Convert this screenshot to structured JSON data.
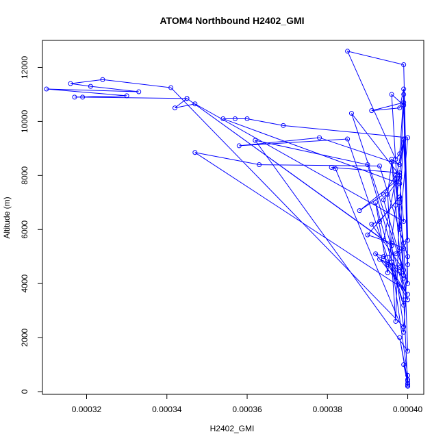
{
  "chart_data": {
    "type": "line",
    "title": "ATOM4 Northbound H2402_GMI",
    "xlabel": "H2402_GMI",
    "ylabel": "Altitude (m)",
    "xlim": [
      0.000309,
      0.000404
    ],
    "ylim": [
      -100,
      13000
    ],
    "x_ticks": [
      "0.00032",
      "0.00034",
      "0.00036",
      "0.00038",
      "0.00040"
    ],
    "x_tick_values": [
      0.00032,
      0.00034,
      0.00036,
      0.00038,
      0.0004
    ],
    "y_ticks": [
      "0",
      "2000",
      "4000",
      "6000",
      "8000",
      "10000",
      "12000"
    ],
    "y_tick_values": [
      0,
      2000,
      4000,
      6000,
      8000,
      10000,
      12000
    ],
    "grid": false,
    "series": [
      {
        "color": "#0000ff",
        "marker": "circle-open",
        "x": [
          0.0004,
          0.000399,
          0.000398,
          0.000397,
          0.000396,
          0.000395,
          0.000396,
          0.000397,
          0.000398,
          0.000399,
          0.0004,
          0.000399,
          0.000385,
          0.000397,
          0.000398,
          0.000399,
          0.0004,
          0.000399,
          0.000398,
          0.000391,
          0.000399,
          0.0004,
          0.000386,
          0.000398,
          0.000399,
          0.000396,
          0.000398,
          0.0004,
          0.000369,
          0.00036,
          0.000357,
          0.000354,
          0.000398,
          0.000399,
          0.000347,
          0.000342,
          0.000345,
          0.000396,
          0.000399,
          0.000341,
          0.000324,
          0.000316,
          0.000321,
          0.000333,
          0.00031,
          0.00033,
          0.000317,
          0.000319,
          0.000345,
          0.000394,
          0.000399,
          0.000395,
          0.000392,
          0.000399,
          0.000385,
          0.000358,
          0.000378,
          0.000398,
          0.000396,
          0.000399,
          0.0004,
          0.000362,
          0.00039,
          0.000399,
          0.000347,
          0.000363,
          0.000393,
          0.0004,
          0.000399,
          0.000382,
          0.000381,
          0.000398,
          0.000399,
          0.000397,
          0.000394,
          0.000388,
          0.000398,
          0.000394,
          0.000399,
          0.000391,
          0.000393,
          0.000398,
          0.00039,
          0.000396,
          0.000399,
          0.000397,
          0.000394,
          0.000392,
          0.0004,
          0.000395,
          0.000393,
          0.000398,
          0.0004,
          0.000394,
          0.000397,
          0.000399,
          0.000396,
          0.0004,
          0.0004,
          0.000398,
          0.0004,
          0.000399,
          0.0004,
          0.0004,
          0.0004,
          0.0004
        ],
        "y": [
          200,
          3400,
          5200,
          6900,
          8500,
          7300,
          4800,
          2600,
          7000,
          9300,
          5600,
          12100,
          12600,
          8600,
          8800,
          11000,
          4700,
          11200,
          10500,
          10400,
          10700,
          4000,
          10300,
          8000,
          10600,
          11000,
          6000,
          9400,
          9850,
          10100,
          10100,
          10100,
          7700,
          6300,
          10650,
          10500,
          10850,
          5400,
          2400,
          11250,
          11550,
          11400,
          11300,
          11100,
          11200,
          10950,
          10900,
          10900,
          10850,
          5600,
          9350,
          4400,
          7000,
          3200,
          9350,
          9100,
          9400,
          8400,
          8600,
          5500,
          1500,
          9300,
          8400,
          3800,
          8850,
          8400,
          8350,
          5000,
          2200,
          8250,
          8300,
          8100,
          4300,
          8000,
          7300,
          6700,
          7900,
          7100,
          4500,
          6200,
          6300,
          7200,
          5800,
          5500,
          5300,
          5100,
          5000,
          5100,
          3600,
          4700,
          4900,
          4600,
          3400,
          5000,
          4500,
          4200,
          4800,
          600,
          400,
          2000,
          300,
          1000,
          450,
          250,
          300,
          200
        ]
      }
    ]
  }
}
